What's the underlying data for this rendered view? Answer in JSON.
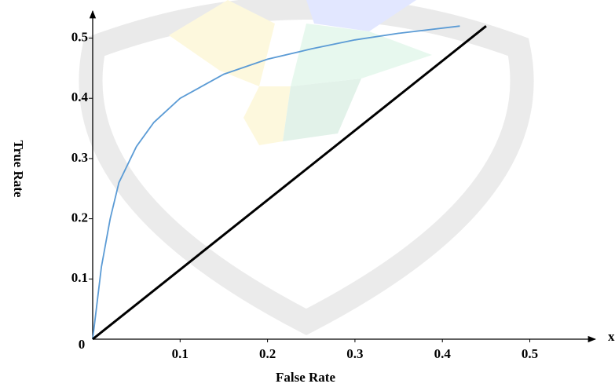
{
  "chart_data": {
    "type": "line",
    "x_label": "False Rate",
    "y_label": "True Rate",
    "annotations": [
      "x"
    ],
    "xlim": [
      0,
      0.575
    ],
    "ylim": [
      0,
      0.545
    ],
    "xticks": [
      0.1,
      0.2,
      0.3,
      0.4,
      0.5
    ],
    "yticks": [
      0,
      0.1,
      0.2,
      0.3,
      0.4,
      0.5
    ],
    "series": [
      {
        "color": "#5b9bd5",
        "x": [
          0,
          0.01,
          0.02,
          0.03,
          0.05,
          0.07,
          0.1,
          0.15,
          0.2,
          0.25,
          0.3,
          0.35,
          0.42
        ],
        "values": [
          0,
          0.12,
          0.2,
          0.26,
          0.32,
          0.36,
          0.4,
          0.44,
          0.465,
          0.482,
          0.497,
          0.508,
          0.52
        ]
      },
      {
        "color": "#000000",
        "x": [
          0,
          0.45
        ],
        "values": [
          0,
          0.52
        ]
      }
    ]
  }
}
